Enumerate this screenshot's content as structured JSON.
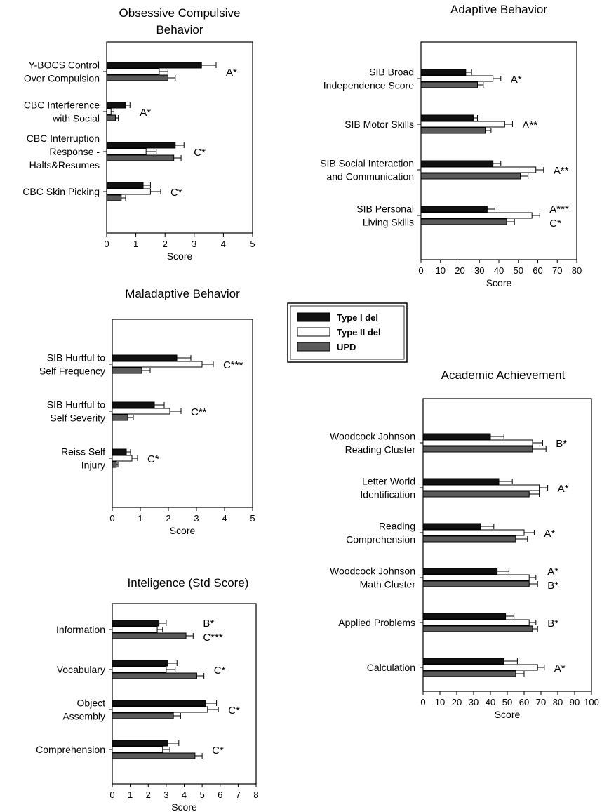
{
  "legend": {
    "items": [
      {
        "name": "Type I del",
        "color": "#111111"
      },
      {
        "name": "Type II del",
        "color": "#ffffff"
      },
      {
        "name": "UPD",
        "color": "#5a5a5a"
      }
    ]
  },
  "chart_data": [
    {
      "type": "bar",
      "orientation": "horizontal",
      "title": [
        "Obsessive Compulsive",
        "Behavior"
      ],
      "xlabel": "Score",
      "xlim": [
        0,
        5
      ],
      "xticks": [
        0,
        1,
        2,
        3,
        4,
        5
      ],
      "series_names": [
        "Type I del",
        "Type II del",
        "UPD"
      ],
      "categories": [
        {
          "label": [
            "Y-BOCS Control",
            "Over Compulsion"
          ],
          "values": [
            3.25,
            1.8,
            2.1
          ],
          "errors": [
            0.5,
            0.3,
            0.25
          ],
          "sig": [
            "A*"
          ]
        },
        {
          "label": [
            "CBC Interference",
            "with Social"
          ],
          "values": [
            0.65,
            0.15,
            0.3
          ],
          "errors": [
            0.15,
            0.1,
            0.1
          ],
          "sig": [
            "A*"
          ]
        },
        {
          "label": [
            "CBC Interruption",
            "Response -",
            "Halts&Resumes"
          ],
          "values": [
            2.35,
            1.35,
            2.3
          ],
          "errors": [
            0.3,
            0.35,
            0.25
          ],
          "sig": [
            "C*"
          ]
        },
        {
          "label": [
            "CBC Skin Picking"
          ],
          "values": [
            1.25,
            1.5,
            0.5
          ],
          "errors": [
            0.25,
            0.35,
            0.15
          ],
          "sig": [
            "C*"
          ]
        }
      ]
    },
    {
      "type": "bar",
      "orientation": "horizontal",
      "title": [
        "Adaptive Behavior"
      ],
      "xlabel": "Score",
      "xlim": [
        0,
        80
      ],
      "xticks": [
        0,
        10,
        20,
        30,
        40,
        50,
        60,
        70,
        80
      ],
      "series_names": [
        "Type I del",
        "Type II del",
        "UPD"
      ],
      "categories": [
        {
          "label": [
            "SIB Broad",
            "Independence Score"
          ],
          "values": [
            23,
            37,
            29
          ],
          "errors": [
            3,
            4,
            3
          ],
          "sig": [
            "A*"
          ]
        },
        {
          "label": [
            "SIB Motor Skills"
          ],
          "values": [
            27,
            43,
            33
          ],
          "errors": [
            2,
            4,
            3
          ],
          "sig": [
            "A**"
          ]
        },
        {
          "label": [
            "SIB Social Interaction",
            "and Communication"
          ],
          "values": [
            37,
            59,
            51
          ],
          "errors": [
            4,
            4,
            4
          ],
          "sig": [
            "A**"
          ]
        },
        {
          "label": [
            "SIB Personal",
            "Living Skills"
          ],
          "values": [
            34,
            57,
            44
          ],
          "errors": [
            4,
            4,
            4
          ],
          "sig": [
            "A***",
            "C*"
          ]
        }
      ]
    },
    {
      "type": "bar",
      "orientation": "horizontal",
      "title": [
        "Maladaptive Behavior"
      ],
      "xlabel": "Score",
      "xlim": [
        0,
        5
      ],
      "xticks": [
        0,
        1,
        2,
        3,
        4,
        5
      ],
      "series_names": [
        "Type I del",
        "Type II del",
        "UPD"
      ],
      "categories": [
        {
          "label": [
            "SIB Hurtful to",
            "Self Frequency"
          ],
          "values": [
            2.3,
            3.2,
            1.05
          ],
          "errors": [
            0.5,
            0.4,
            0.3
          ],
          "sig": [
            "C***"
          ]
        },
        {
          "label": [
            "SIB Hurtful to",
            "Self Severity"
          ],
          "values": [
            1.5,
            2.05,
            0.55
          ],
          "errors": [
            0.35,
            0.4,
            0.2
          ],
          "sig": [
            "C**"
          ]
        },
        {
          "label": [
            "Reiss Self",
            "Injury"
          ],
          "values": [
            0.5,
            0.7,
            0.15
          ],
          "errors": [
            0.15,
            0.2,
            0.05
          ],
          "sig": [
            "C*"
          ]
        }
      ]
    },
    {
      "type": "bar",
      "orientation": "horizontal",
      "title": [
        "Academic Achievement"
      ],
      "xlabel": "Score",
      "xlim": [
        0,
        100
      ],
      "xticks": [
        0,
        10,
        20,
        30,
        40,
        50,
        60,
        70,
        80,
        90,
        100
      ],
      "series_names": [
        "Type I del",
        "Type II del",
        "UPD"
      ],
      "categories": [
        {
          "label": [
            "Woodcock Johnson",
            "Reading Cluster"
          ],
          "values": [
            40,
            65,
            65
          ],
          "errors": [
            8,
            6,
            8
          ],
          "sig": [
            "B*"
          ]
        },
        {
          "label": [
            "Letter World",
            "Identification"
          ],
          "values": [
            45,
            69,
            63
          ],
          "errors": [
            8,
            5,
            6
          ],
          "sig": [
            "A*"
          ]
        },
        {
          "label": [
            "Reading",
            "Comprehension"
          ],
          "values": [
            34,
            60,
            55
          ],
          "errors": [
            8,
            6,
            7
          ],
          "sig": [
            "A*"
          ]
        },
        {
          "label": [
            "Woodcock Johnson",
            "Math Cluster"
          ],
          "values": [
            44,
            63,
            63
          ],
          "errors": [
            7,
            4,
            5
          ],
          "sig": [
            "A*",
            "B*"
          ]
        },
        {
          "label": [
            "Applied Problems"
          ],
          "values": [
            49,
            63,
            65
          ],
          "errors": [
            5,
            4,
            3
          ],
          "sig": [
            "B*"
          ]
        },
        {
          "label": [
            "Calculation"
          ],
          "values": [
            48,
            68,
            55
          ],
          "errors": [
            8,
            4,
            5
          ],
          "sig": [
            "A*"
          ]
        }
      ]
    },
    {
      "type": "bar",
      "orientation": "horizontal",
      "title": [
        "Inteligence (Std Score)"
      ],
      "xlabel": "Score",
      "xlim": [
        0,
        8
      ],
      "xticks": [
        0,
        1,
        2,
        3,
        4,
        5,
        6,
        7,
        8
      ],
      "series_names": [
        "Type I del",
        "Type II del",
        "UPD"
      ],
      "categories": [
        {
          "label": [
            "Information"
          ],
          "values": [
            2.6,
            2.5,
            4.1
          ],
          "errors": [
            0.4,
            0.3,
            0.4
          ],
          "sig": [
            "B*",
            "C***"
          ]
        },
        {
          "label": [
            "Vocabulary"
          ],
          "values": [
            3.1,
            3.0,
            4.7
          ],
          "errors": [
            0.5,
            0.5,
            0.4
          ],
          "sig": [
            "C*"
          ]
        },
        {
          "label": [
            "Object",
            "Assembly"
          ],
          "values": [
            5.2,
            5.3,
            3.4
          ],
          "errors": [
            0.6,
            0.6,
            0.4
          ],
          "sig": [
            "C*"
          ]
        },
        {
          "label": [
            "Comprehension"
          ],
          "values": [
            3.1,
            2.8,
            4.6
          ],
          "errors": [
            0.6,
            0.4,
            0.4
          ],
          "sig": [
            "C*"
          ]
        }
      ]
    }
  ]
}
